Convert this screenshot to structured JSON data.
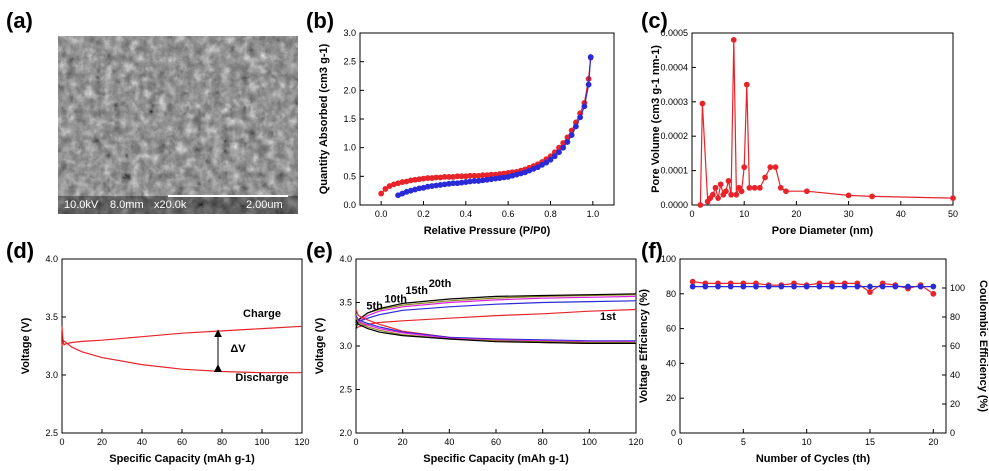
{
  "panel_labels": [
    "(a)",
    "(b)",
    "(c)",
    "(d)",
    "(e)",
    "(f)"
  ],
  "sem_image": {
    "info": [
      "10.0kV",
      "8.0mm",
      "x20.0k",
      "2.00um"
    ]
  },
  "colors": {
    "red": "#e8242a",
    "blue": "#2a2ad8",
    "black": "#000000",
    "olive": "#8a8a1a",
    "magenta": "#e020e0"
  },
  "chart_data": [
    {
      "id": "b",
      "type": "line",
      "xlabel": "Relative Pressure (P/P0)",
      "ylabel": "Quantity Absorbed (cm3 g-1)",
      "xlim": [
        -0.1,
        1.1
      ],
      "ylim": [
        0,
        3.0
      ],
      "xticks": [
        0.0,
        0.2,
        0.4,
        0.6,
        0.8,
        1.0
      ],
      "yticks": [
        0.0,
        0.5,
        1.0,
        1.5,
        2.0,
        2.5,
        3.0
      ],
      "xtick_decimals": 1,
      "ytick_decimals": 1,
      "markers": true,
      "series": [
        {
          "color": "#e8242a",
          "x": [
            0.0,
            0.02,
            0.04,
            0.06,
            0.08,
            0.1,
            0.12,
            0.14,
            0.16,
            0.18,
            0.2,
            0.22,
            0.24,
            0.26,
            0.28,
            0.3,
            0.32,
            0.34,
            0.36,
            0.38,
            0.4,
            0.42,
            0.44,
            0.46,
            0.48,
            0.5,
            0.52,
            0.54,
            0.56,
            0.58,
            0.6,
            0.62,
            0.64,
            0.66,
            0.68,
            0.7,
            0.72,
            0.74,
            0.76,
            0.78,
            0.8,
            0.82,
            0.84,
            0.86,
            0.88,
            0.9,
            0.92,
            0.94,
            0.96,
            0.98,
            0.99
          ],
          "y": [
            0.2,
            0.28,
            0.33,
            0.36,
            0.38,
            0.4,
            0.41,
            0.43,
            0.44,
            0.45,
            0.46,
            0.47,
            0.47,
            0.48,
            0.48,
            0.49,
            0.49,
            0.49,
            0.5,
            0.5,
            0.5,
            0.51,
            0.51,
            0.51,
            0.52,
            0.52,
            0.53,
            0.53,
            0.54,
            0.55,
            0.56,
            0.57,
            0.58,
            0.6,
            0.62,
            0.65,
            0.68,
            0.71,
            0.75,
            0.8,
            0.85,
            0.92,
            1.0,
            1.08,
            1.18,
            1.3,
            1.44,
            1.6,
            1.78,
            2.2,
            2.57
          ]
        },
        {
          "color": "#2a2ad8",
          "x": [
            0.08,
            0.1,
            0.12,
            0.14,
            0.16,
            0.18,
            0.2,
            0.22,
            0.24,
            0.26,
            0.28,
            0.3,
            0.32,
            0.34,
            0.36,
            0.38,
            0.4,
            0.42,
            0.44,
            0.46,
            0.48,
            0.5,
            0.52,
            0.54,
            0.56,
            0.58,
            0.6,
            0.62,
            0.64,
            0.66,
            0.68,
            0.7,
            0.72,
            0.74,
            0.76,
            0.78,
            0.8,
            0.82,
            0.84,
            0.86,
            0.88,
            0.9,
            0.92,
            0.94,
            0.96,
            0.98,
            0.99
          ],
          "y": [
            0.17,
            0.2,
            0.23,
            0.25,
            0.27,
            0.29,
            0.3,
            0.32,
            0.33,
            0.34,
            0.35,
            0.36,
            0.37,
            0.38,
            0.38,
            0.39,
            0.4,
            0.41,
            0.42,
            0.42,
            0.43,
            0.44,
            0.45,
            0.46,
            0.47,
            0.48,
            0.49,
            0.51,
            0.53,
            0.55,
            0.57,
            0.6,
            0.63,
            0.66,
            0.7,
            0.74,
            0.79,
            0.85,
            0.92,
            1.0,
            1.1,
            1.22,
            1.37,
            1.53,
            1.72,
            2.1,
            2.58
          ]
        }
      ]
    },
    {
      "id": "c",
      "type": "line",
      "xlabel": "Pore Diameter (nm)",
      "ylabel": "Pore Volume (cm3 g-1 nm-1)",
      "xlim": [
        0,
        50
      ],
      "ylim": [
        0,
        0.0005
      ],
      "xticks": [
        0,
        10,
        20,
        30,
        40,
        50
      ],
      "yticks": [
        0.0,
        0.0001,
        0.0002,
        0.0003,
        0.0004,
        0.0005
      ],
      "xtick_decimals": 0,
      "ytick_decimals": 4,
      "markers": true,
      "series": [
        {
          "color": "#e8242a",
          "x": [
            1.6,
            2.0,
            3.0,
            3.5,
            4.0,
            4.5,
            5.0,
            5.5,
            6.0,
            6.5,
            7.0,
            7.5,
            8.0,
            8.5,
            9.0,
            9.5,
            10.0,
            10.5,
            11.0,
            12.0,
            13.0,
            14.0,
            15.0,
            16.0,
            17.0,
            18.0,
            22.0,
            30.0,
            34.5,
            50.0
          ],
          "y": [
            0.0,
            0.000295,
            1e-05,
            2e-05,
            3e-05,
            5e-05,
            2e-05,
            6e-05,
            3e-05,
            4e-05,
            7e-05,
            3e-05,
            0.00048,
            3e-05,
            5e-05,
            4e-05,
            0.00011,
            0.00035,
            5e-05,
            5e-05,
            5e-05,
            8e-05,
            0.00011,
            0.00011,
            5e-05,
            4e-05,
            4e-05,
            2.8e-05,
            2.5e-05,
            2e-05
          ]
        }
      ]
    },
    {
      "id": "d",
      "type": "line",
      "xlabel": "Specific Capacity (mAh g-1)",
      "ylabel": "Voltage (V)",
      "xlim": [
        0,
        120
      ],
      "ylim": [
        2.5,
        4.0
      ],
      "xticks": [
        0,
        20,
        40,
        60,
        80,
        100,
        120
      ],
      "yticks": [
        2.5,
        3.0,
        3.5,
        4.0
      ],
      "xtick_decimals": 0,
      "ytick_decimals": 1,
      "markers": false,
      "series": [
        {
          "color": "#e8242a",
          "x": [
            0,
            0.5,
            1,
            2,
            5,
            10,
            20,
            40,
            60,
            80,
            100,
            120
          ],
          "y": [
            3.42,
            3.3,
            3.26,
            3.27,
            3.28,
            3.29,
            3.3,
            3.33,
            3.36,
            3.38,
            3.4,
            3.42
          ]
        },
        {
          "color": "#e8242a",
          "x": [
            0,
            0.5,
            2,
            5,
            10,
            20,
            40,
            60,
            80,
            100,
            120
          ],
          "y": [
            3.25,
            3.3,
            3.28,
            3.24,
            3.2,
            3.15,
            3.09,
            3.05,
            3.03,
            3.02,
            3.02
          ]
        }
      ],
      "annotations": {
        "charge": "Charge",
        "discharge": "Discharge",
        "delta": "ΔV",
        "arrow_x": 78,
        "arrow_y": [
          3.06,
          3.36
        ],
        "charge_label_pos": [
          100,
          3.5
        ],
        "discharge_label_pos": [
          100,
          2.95
        ],
        "delta_label_pos": [
          88,
          3.2
        ]
      }
    },
    {
      "id": "e",
      "type": "line",
      "xlabel": "Specific Capacity (mAh g-1)",
      "ylabel": "Voltage (V)",
      "xlim": [
        0,
        120
      ],
      "ylim": [
        2.0,
        4.0
      ],
      "xticks": [
        0,
        20,
        40,
        60,
        80,
        100,
        120
      ],
      "yticks": [
        2.0,
        2.5,
        3.0,
        3.5,
        4.0
      ],
      "xtick_decimals": 0,
      "ytick_decimals": 1,
      "markers": false,
      "series": [
        {
          "color": "#e8242a",
          "x": [
            0,
            1,
            5,
            10,
            20,
            40,
            60,
            80,
            100,
            120
          ],
          "y": [
            3.2,
            3.22,
            3.25,
            3.27,
            3.29,
            3.32,
            3.35,
            3.37,
            3.4,
            3.42
          ]
        },
        {
          "color": "#2a2ad8",
          "x": [
            0,
            1,
            5,
            10,
            20,
            40,
            60,
            80,
            100,
            120
          ],
          "y": [
            3.25,
            3.28,
            3.32,
            3.36,
            3.41,
            3.45,
            3.48,
            3.5,
            3.51,
            3.52
          ]
        },
        {
          "color": "#e020e0",
          "x": [
            0,
            1,
            5,
            10,
            20,
            40,
            60,
            80,
            100,
            120
          ],
          "y": [
            3.22,
            3.28,
            3.35,
            3.4,
            3.45,
            3.5,
            3.53,
            3.55,
            3.56,
            3.57
          ]
        },
        {
          "color": "#8a8a1a",
          "x": [
            0,
            1,
            5,
            10,
            20,
            40,
            60,
            80,
            100,
            120
          ],
          "y": [
            3.22,
            3.3,
            3.38,
            3.42,
            3.47,
            3.52,
            3.55,
            3.57,
            3.58,
            3.59
          ]
        },
        {
          "color": "#000000",
          "x": [
            0,
            1,
            5,
            10,
            20,
            40,
            60,
            80,
            100,
            120
          ],
          "y": [
            3.2,
            3.3,
            3.38,
            3.43,
            3.49,
            3.54,
            3.57,
            3.58,
            3.59,
            3.6
          ]
        },
        {
          "color": "#e8242a",
          "x": [
            0,
            1,
            5,
            10,
            20,
            40,
            60,
            80,
            100,
            120
          ],
          "y": [
            3.42,
            3.35,
            3.3,
            3.25,
            3.17,
            3.1,
            3.06,
            3.04,
            3.03,
            3.03
          ]
        },
        {
          "color": "#2a2ad8",
          "x": [
            0,
            1,
            5,
            10,
            20,
            40,
            60,
            80,
            100,
            120
          ],
          "y": [
            3.35,
            3.3,
            3.26,
            3.22,
            3.16,
            3.1,
            3.08,
            3.07,
            3.06,
            3.06
          ]
        },
        {
          "color": "#e020e0",
          "x": [
            0,
            1,
            5,
            10,
            20,
            40,
            60,
            80,
            100,
            120
          ],
          "y": [
            3.33,
            3.28,
            3.24,
            3.2,
            3.15,
            3.09,
            3.07,
            3.06,
            3.05,
            3.05
          ]
        },
        {
          "color": "#8a8a1a",
          "x": [
            0,
            1,
            5,
            10,
            20,
            40,
            60,
            80,
            100,
            120
          ],
          "y": [
            3.32,
            3.27,
            3.22,
            3.18,
            3.13,
            3.08,
            3.06,
            3.05,
            3.04,
            3.04
          ]
        },
        {
          "color": "#000000",
          "x": [
            0,
            1,
            5,
            10,
            20,
            40,
            60,
            80,
            100,
            120
          ],
          "y": [
            3.3,
            3.25,
            3.2,
            3.16,
            3.12,
            3.08,
            3.05,
            3.04,
            3.03,
            3.03
          ]
        }
      ],
      "cycle_labels": [
        {
          "text": "1st",
          "color": "#e8242a",
          "x": 108,
          "y": 3.3
        },
        {
          "text": "5th",
          "color": "#2a2ad8",
          "x": 8,
          "y": 3.42
        },
        {
          "text": "10th",
          "color": "#e020e0",
          "x": 17,
          "y": 3.5
        },
        {
          "text": "15th",
          "color": "#8a8a1a",
          "x": 26,
          "y": 3.6
        },
        {
          "text": "20th",
          "color": "#000000",
          "x": 36,
          "y": 3.68
        }
      ]
    },
    {
      "id": "f",
      "type": "line",
      "xlabel": "Number of Cycles (th)",
      "ylabel": "Voltage Efficiency (%)",
      "ylabel_right": "Coulombic Efficiency (%)",
      "xlim": [
        0,
        21
      ],
      "ylim": [
        0,
        100
      ],
      "ylim_right": [
        0,
        120
      ],
      "xticks": [
        0,
        5,
        10,
        15,
        20
      ],
      "yticks": [
        0,
        20,
        40,
        60,
        80,
        100
      ],
      "yticks_right": [
        0,
        20,
        40,
        60,
        80,
        100
      ],
      "xtick_decimals": 0,
      "ytick_decimals": 0,
      "markers": true,
      "series": [
        {
          "color": "#e8242a",
          "axis": "left",
          "x": [
            1,
            2,
            3,
            4,
            5,
            6,
            7,
            8,
            9,
            10,
            11,
            12,
            13,
            14,
            15,
            16,
            17,
            18,
            19,
            20
          ],
          "y": [
            87,
            86,
            86,
            86,
            86,
            86,
            85,
            85,
            86,
            85,
            86,
            86,
            86,
            86,
            81,
            86,
            85,
            83,
            85,
            80
          ]
        },
        {
          "color": "#2a2ad8",
          "axis": "right",
          "x": [
            1,
            2,
            3,
            4,
            5,
            6,
            7,
            8,
            9,
            10,
            11,
            12,
            13,
            14,
            15,
            16,
            17,
            18,
            19,
            20
          ],
          "y": [
            101,
            101,
            101,
            101,
            101,
            101,
            101,
            101,
            101,
            101,
            101,
            101,
            101,
            101,
            101,
            101,
            101,
            101,
            101,
            101
          ]
        }
      ]
    }
  ]
}
